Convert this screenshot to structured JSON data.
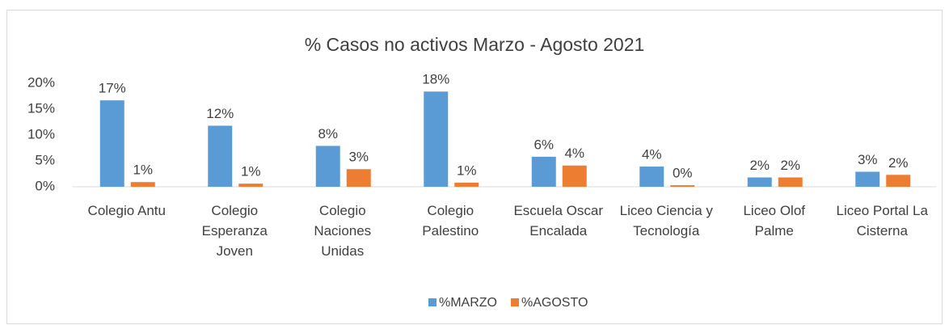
{
  "chart_data": {
    "type": "bar",
    "title": "% Casos no activos Marzo - Agosto 2021",
    "categories": [
      "Colegio Antu",
      "Colegio Esperanza Joven",
      "Colegio Naciones Unidas",
      "Colegio Palestino",
      "Escuela Oscar Encalada",
      "Liceo Ciencia y Tecnología",
      "Liceo Olof Palme",
      "Liceo Portal La Cisterna"
    ],
    "series": [
      {
        "name": "%MARZO",
        "color": "#5b9bd5",
        "values": [
          16.7,
          11.8,
          7.9,
          18.4,
          5.8,
          3.9,
          1.8,
          2.9
        ],
        "value_labels": [
          "17%",
          "12%",
          "8%",
          "18%",
          "6%",
          "4%",
          "2%",
          "3%"
        ]
      },
      {
        "name": "%AGOSTO",
        "color": "#ed7d31",
        "values": [
          0.9,
          0.6,
          3.4,
          0.8,
          4.1,
          0.3,
          1.8,
          2.3
        ],
        "value_labels": [
          "1%",
          "1%",
          "3%",
          "1%",
          "4%",
          "0%",
          "2%",
          "2%"
        ]
      }
    ],
    "ylim": [
      0,
      20
    ],
    "yticks": [
      {
        "value": 0,
        "label": "0%"
      },
      {
        "value": 5,
        "label": "5%"
      },
      {
        "value": 10,
        "label": "10%"
      },
      {
        "value": 15,
        "label": "15%"
      },
      {
        "value": 20,
        "label": "20%"
      }
    ],
    "grid": false,
    "legend": "bottom"
  }
}
